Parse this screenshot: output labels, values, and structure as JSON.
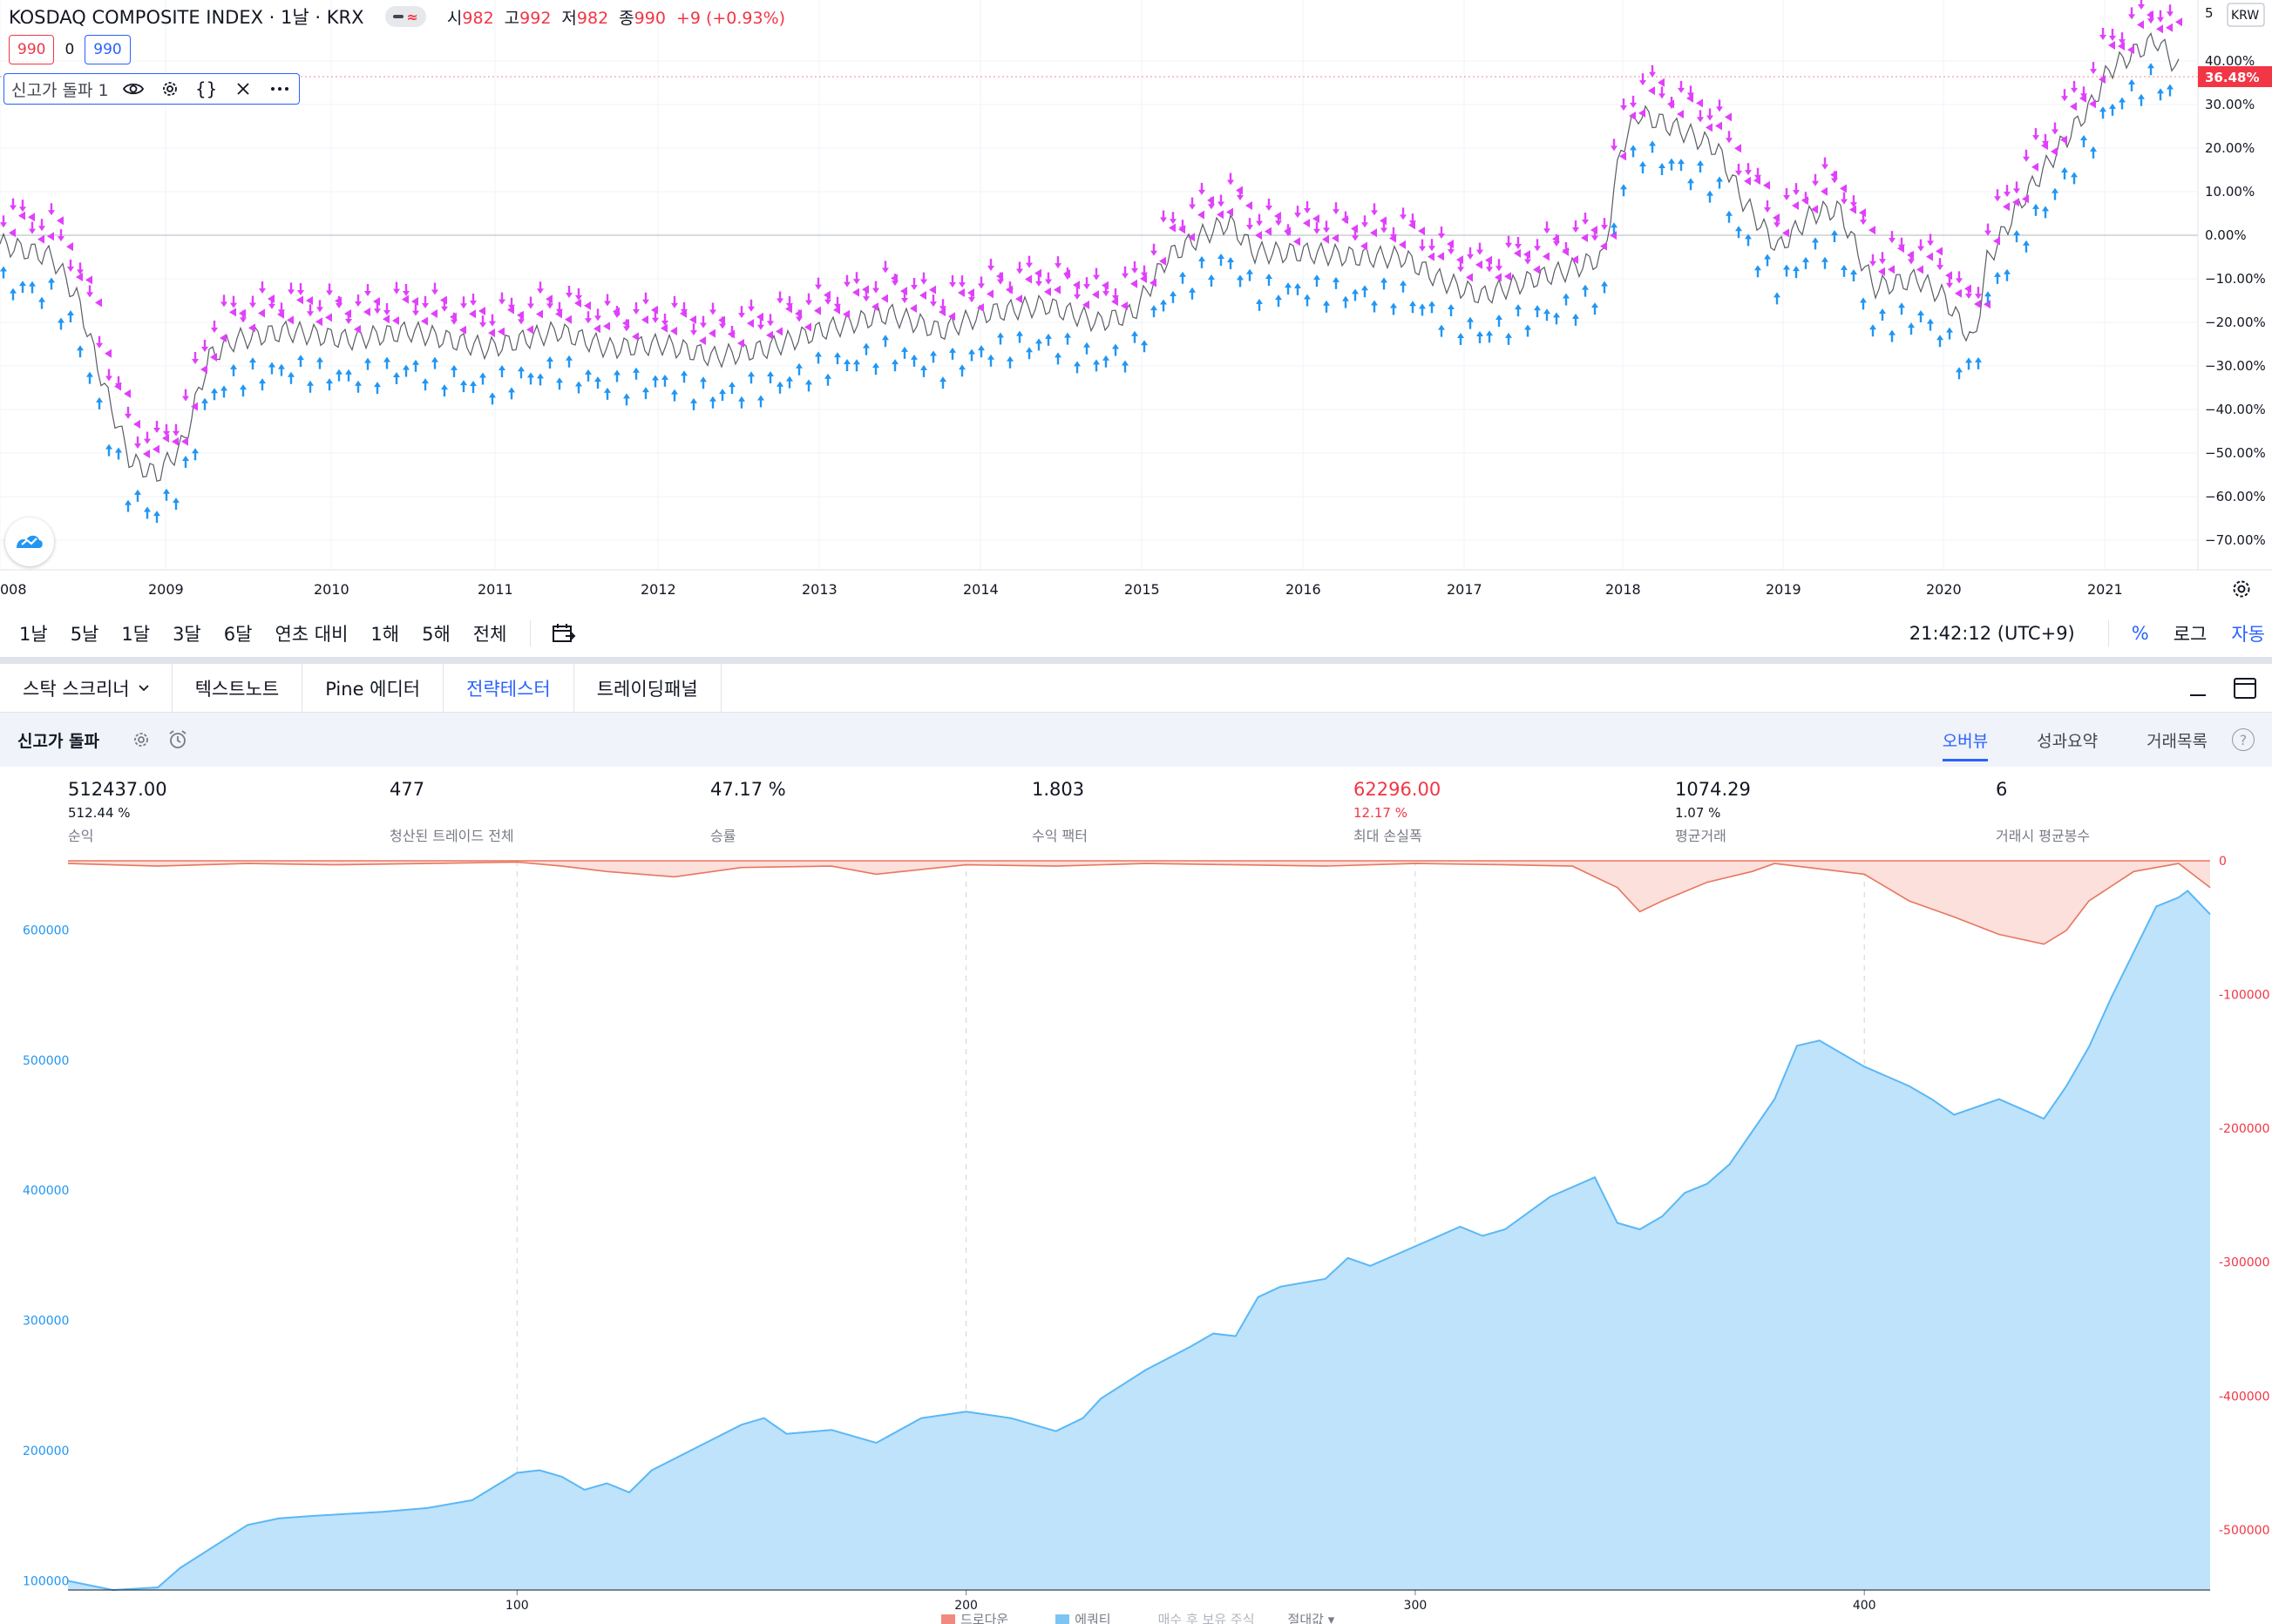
{
  "symbol": {
    "title": "KOSDAQ COMPOSITE INDEX · 1날 · KRX",
    "badge_wave": "≈",
    "ohlc": [
      {
        "label": "시",
        "value": "982"
      },
      {
        "label": "고",
        "value": "992"
      },
      {
        "label": "저",
        "value": "982"
      },
      {
        "label": "종",
        "value": "990"
      }
    ],
    "change": "+9 (+0.93%)",
    "sell_price": "990",
    "spread": "0",
    "buy_price": "990"
  },
  "indicator": {
    "label": "신고가 돌파 1",
    "icons": [
      "eye-icon",
      "gear-icon",
      "braces-icon",
      "close-icon",
      "more-icon"
    ]
  },
  "price_axis": {
    "currency": "KRW",
    "top_label": "5",
    "ticks": [
      "40.00%",
      "30.00%",
      "20.00%",
      "10.00%",
      "0.00%",
      "−10.00%",
      "−20.00%",
      "−30.00%",
      "−40.00%",
      "−50.00%",
      "−60.00%",
      "−70.00%"
    ],
    "current_label": "36.48%",
    "current_color": "#f23645"
  },
  "time_axis": [
    "008",
    "2009",
    "2010",
    "2011",
    "2012",
    "2013",
    "2014",
    "2015",
    "2016",
    "2017",
    "2018",
    "2019",
    "2020",
    "2021"
  ],
  "range_bar": {
    "ranges": [
      "1날",
      "5날",
      "1달",
      "3달",
      "6달",
      "연초 대비",
      "1해",
      "5해",
      "전체"
    ],
    "time": "21:42:12 (UTC+9)",
    "percent": "%",
    "log": "로그",
    "auto": "자동"
  },
  "panel_tabs": [
    {
      "label": "스탁 스크리너",
      "active": false
    },
    {
      "label": "텍스트노트",
      "active": false
    },
    {
      "label": "Pine 에디터",
      "active": false
    },
    {
      "label": "전략테스터",
      "active": true
    },
    {
      "label": "트레이딩패널",
      "active": false
    }
  ],
  "strategy": {
    "name": "신고가 돌파",
    "tabs": [
      {
        "label": "오버뷰",
        "active": true
      },
      {
        "label": "성과요약",
        "active": false
      },
      {
        "label": "거래목록",
        "active": false
      }
    ],
    "help": "?"
  },
  "metrics": [
    {
      "value": "512437.00",
      "sub": "512.44 %",
      "label": "순익",
      "red": false
    },
    {
      "value": "477",
      "sub": "",
      "label": "청산된 트레이드 전체",
      "red": false
    },
    {
      "value": "47.17 %",
      "sub": "",
      "label": "승률",
      "red": false
    },
    {
      "value": "1.803",
      "sub": "",
      "label": "수익 팩터",
      "red": false
    },
    {
      "value": "62296.00",
      "sub": "12.17 %",
      "label": "최대 손실폭",
      "red": true
    },
    {
      "value": "1074.29",
      "sub": "1.07 %",
      "label": "평균거래",
      "red": false
    },
    {
      "value": "6",
      "sub": "",
      "label": "거래시 평균봉수",
      "red": false
    }
  ],
  "colors": {
    "accent": "#2962ff",
    "sell_marker": "#e040fb",
    "buy_marker": "#2196f3",
    "drawdown": "#f23645",
    "equity_fill": "#bfe3fb",
    "equity_line": "#5ab8f5"
  },
  "chart_data": {
    "type": "area",
    "x_ticks": [
      "100",
      "200",
      "300",
      "400"
    ],
    "x_range": [
      0,
      477
    ],
    "left_axis": {
      "ticks": [
        "600000",
        "500000",
        "400000",
        "300000",
        "200000",
        "100000"
      ],
      "range": [
        93000,
        633000
      ]
    },
    "right_axis": {
      "ticks": [
        "0",
        "-100000",
        "-200000",
        "-300000",
        "-400000",
        "-500000"
      ],
      "range": [
        -545000,
        0
      ]
    },
    "series": [
      {
        "name": "드로다운",
        "color": "#f23645",
        "x": [
          0,
          20,
          40,
          60,
          80,
          100,
          110,
          120,
          135,
          150,
          170,
          180,
          200,
          220,
          240,
          260,
          280,
          300,
          320,
          335,
          345,
          350,
          355,
          365,
          375,
          380,
          400,
          410,
          420,
          430,
          440,
          445,
          450,
          460,
          470,
          477
        ],
        "values": [
          -2000,
          -4000,
          -2000,
          -3000,
          -2000,
          -1000,
          -4000,
          -8000,
          -12000,
          -5000,
          -4000,
          -10000,
          -3000,
          -4000,
          -2000,
          -3000,
          -4000,
          -2000,
          -3000,
          -4000,
          -20000,
          -38000,
          -30000,
          -16000,
          -8000,
          -2000,
          -10000,
          -30000,
          -42000,
          -55000,
          -62296,
          -52000,
          -30000,
          -8000,
          -2000,
          -20000
        ]
      },
      {
        "name": "에쿼티",
        "color": "#5ab8f5",
        "x": [
          0,
          10,
          20,
          25,
          40,
          47,
          55,
          70,
          80,
          90,
          100,
          105,
          110,
          115,
          120,
          125,
          130,
          150,
          155,
          160,
          170,
          180,
          190,
          200,
          210,
          220,
          226,
          230,
          240,
          250,
          255,
          260,
          265,
          270,
          280,
          285,
          290,
          300,
          310,
          315,
          320,
          330,
          340,
          345,
          350,
          355,
          360,
          365,
          370,
          375,
          380,
          385,
          390,
          400,
          410,
          415,
          420,
          430,
          440,
          445,
          450,
          455,
          460,
          465,
          470,
          472,
          477
        ],
        "values": [
          100000,
          93000,
          95000,
          110000,
          143000,
          148000,
          150000,
          153000,
          156000,
          162000,
          183000,
          185000,
          180000,
          170000,
          175000,
          168000,
          185000,
          220000,
          225000,
          213000,
          216000,
          206000,
          225000,
          230000,
          225000,
          215000,
          225000,
          240000,
          262000,
          280000,
          290000,
          288000,
          318000,
          326000,
          332000,
          348000,
          342000,
          357000,
          372000,
          365000,
          370000,
          395000,
          410000,
          375000,
          370000,
          380000,
          398000,
          405000,
          420000,
          445000,
          470000,
          511000,
          515000,
          495000,
          480000,
          470000,
          458000,
          470000,
          455000,
          480000,
          510000,
          548000,
          583000,
          618000,
          625000,
          630000,
          612000
        ]
      }
    ],
    "legend": [
      "드로다운",
      "에쿼티",
      "매수 후 보유 주식",
      "절대값"
    ]
  }
}
